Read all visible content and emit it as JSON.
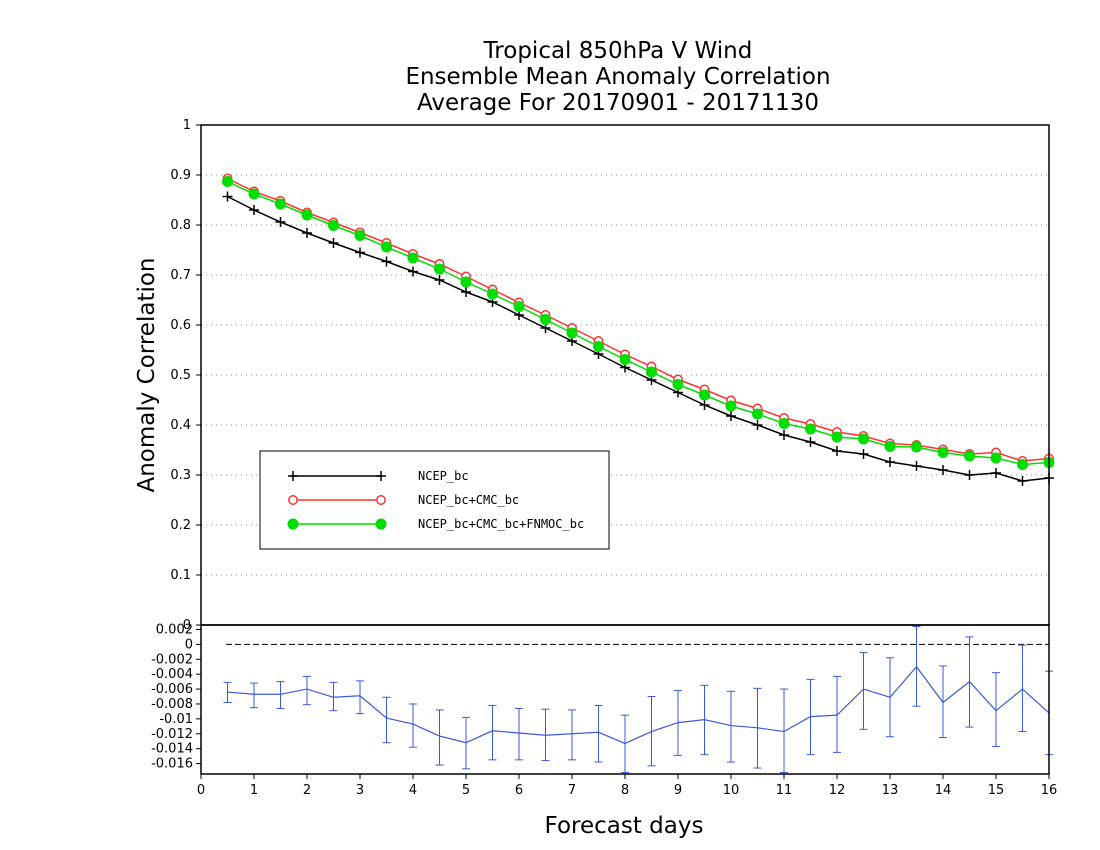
{
  "chart_data": [
    {
      "type": "line",
      "title": [
        "Tropical 850hPa V Wind",
        "Ensemble Mean Anomaly Correlation",
        "Average For 20170901 - 20171130"
      ],
      "ylabel": "Anomaly Correlation",
      "xlabel": "Forecast days",
      "xlim": [
        0,
        16
      ],
      "ylim": [
        0,
        1
      ],
      "x_ticks": [
        "0",
        "1",
        "2",
        "3",
        "4",
        "5",
        "6",
        "7",
        "8",
        "9",
        "10",
        "11",
        "12",
        "13",
        "14",
        "15",
        "16"
      ],
      "y_ticks": [
        "0",
        "0.1",
        "0.2",
        "0.3",
        "0.4",
        "0.5",
        "0.6",
        "0.7",
        "0.8",
        "0.9",
        "1"
      ],
      "grid": "horizontal dotted",
      "legend_position": "left-center",
      "x": [
        0.5,
        1,
        1.5,
        2,
        2.5,
        3,
        3.5,
        4,
        4.5,
        5,
        5.5,
        6,
        6.5,
        7,
        7.5,
        8,
        8.5,
        9,
        9.5,
        10,
        10.5,
        11,
        11.5,
        12,
        12.5,
        13,
        13.5,
        14,
        14.5,
        15,
        15.5,
        16
      ],
      "series": [
        {
          "name": "NCEP_bc",
          "color": "#000000",
          "marker": "plus",
          "values": [
            0.857,
            0.83,
            0.806,
            0.784,
            0.764,
            0.745,
            0.727,
            0.707,
            0.69,
            0.666,
            0.646,
            0.62,
            0.594,
            0.568,
            0.542,
            0.515,
            0.49,
            0.465,
            0.44,
            0.418,
            0.4,
            0.38,
            0.366,
            0.348,
            0.342,
            0.326,
            0.318,
            0.31,
            0.3,
            0.304,
            0.288,
            0.294
          ]
        },
        {
          "name": "NCEP_bc+CMC_bc",
          "color": "#ff3030",
          "marker": "open-circle",
          "values": [
            0.893,
            0.867,
            0.848,
            0.825,
            0.805,
            0.785,
            0.764,
            0.742,
            0.722,
            0.697,
            0.671,
            0.645,
            0.62,
            0.594,
            0.568,
            0.541,
            0.517,
            0.491,
            0.471,
            0.449,
            0.433,
            0.414,
            0.402,
            0.386,
            0.378,
            0.363,
            0.36,
            0.351,
            0.342,
            0.345,
            0.328,
            0.333
          ]
        },
        {
          "name": "NCEP_bc+CMC_bc+FNMOC_bc",
          "color": "#00dd00",
          "marker": "filled-circle",
          "values": [
            0.887,
            0.862,
            0.842,
            0.82,
            0.799,
            0.779,
            0.756,
            0.734,
            0.712,
            0.686,
            0.662,
            0.637,
            0.611,
            0.584,
            0.557,
            0.531,
            0.506,
            0.481,
            0.46,
            0.438,
            0.422,
            0.403,
            0.392,
            0.376,
            0.372,
            0.357,
            0.356,
            0.345,
            0.338,
            0.334,
            0.321,
            0.325
          ]
        }
      ]
    },
    {
      "type": "line",
      "xlim": [
        0,
        16
      ],
      "ylim": [
        -0.0174,
        0.0026
      ],
      "y_ticks": [
        "0.002",
        "0",
        "-0.002",
        "-0.004",
        "-0.006",
        "-0.008",
        "-0.01",
        "-0.012",
        "-0.014",
        "-0.016"
      ],
      "reference_line": 0,
      "series": [
        {
          "color": "#3b5bd6",
          "marker": "error-bars",
          "x": [
            0.5,
            1,
            1.5,
            2,
            2.5,
            3,
            3.5,
            4,
            4.5,
            5,
            5.5,
            6,
            6.5,
            7,
            7.5,
            8,
            8.5,
            9,
            9.5,
            10,
            10.5,
            11,
            11.5,
            12,
            12.5,
            13,
            13.5,
            14,
            14.5,
            15,
            15.5,
            16
          ],
          "values": [
            -0.0064,
            -0.0067,
            -0.0067,
            -0.006,
            -0.0071,
            -0.0069,
            -0.0099,
            -0.0107,
            -0.0123,
            -0.0132,
            -0.0116,
            -0.0119,
            -0.0122,
            -0.012,
            -0.0118,
            -0.0133,
            -0.0117,
            -0.0105,
            -0.0101,
            -0.0109,
            -0.0112,
            -0.0117,
            -0.0097,
            -0.0095,
            -0.006,
            -0.0071,
            -0.003,
            -0.0078,
            -0.005,
            -0.0089,
            -0.006,
            -0.0092
          ],
          "err_lower": [
            -0.0078,
            -0.0085,
            -0.0086,
            -0.0081,
            -0.0089,
            -0.0093,
            -0.0132,
            -0.0138,
            -0.0162,
            -0.0167,
            -0.0155,
            -0.0155,
            -0.0156,
            -0.0155,
            -0.0158,
            -0.0172,
            -0.0163,
            -0.0149,
            -0.0148,
            -0.0158,
            -0.0166,
            -0.0172,
            -0.0148,
            -0.0145,
            -0.0114,
            -0.0124,
            -0.0083,
            -0.0125,
            -0.0111,
            -0.0137,
            -0.0117,
            -0.0148
          ],
          "err_upper": [
            -0.0051,
            -0.0052,
            -0.005,
            -0.0043,
            -0.0051,
            -0.0049,
            -0.0071,
            -0.008,
            -0.0088,
            -0.0098,
            -0.0082,
            -0.0086,
            -0.0087,
            -0.0088,
            -0.0082,
            -0.0095,
            -0.007,
            -0.0062,
            -0.0055,
            -0.0063,
            -0.0059,
            -0.006,
            -0.0047,
            -0.0043,
            -0.0011,
            -0.0018,
            0.0024,
            -0.0029,
            0.001,
            -0.0038,
            -0.0001,
            -0.0036
          ]
        }
      ]
    }
  ]
}
